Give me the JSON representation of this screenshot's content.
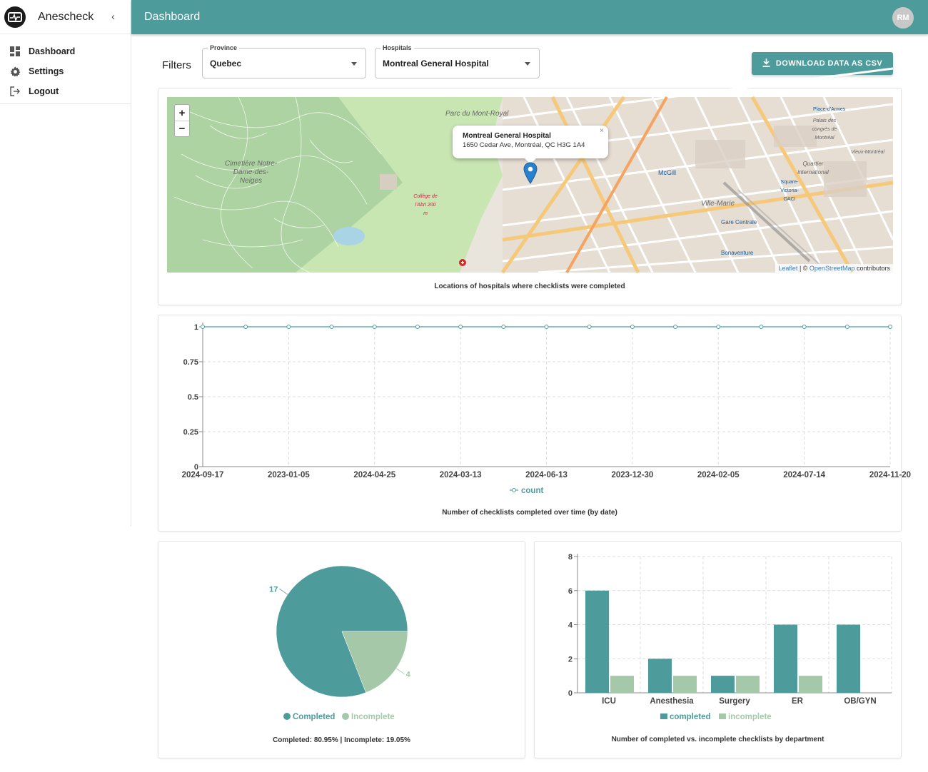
{
  "app": {
    "name": "Anescheck"
  },
  "topbar": {
    "title": "Dashboard",
    "avatar_initials": "RM"
  },
  "sidebar": {
    "items": [
      {
        "label": "Dashboard",
        "icon": "dashboard-icon"
      },
      {
        "label": "Settings",
        "icon": "gear-icon"
      },
      {
        "label": "Logout",
        "icon": "logout-icon"
      }
    ]
  },
  "filters": {
    "label": "Filters",
    "province": {
      "label": "Province",
      "value": "Quebec"
    },
    "hospital": {
      "label": "Hospitals",
      "value": "Montreal General Hospital"
    },
    "download_label": "DOWNLOAD DATA AS CSV"
  },
  "map": {
    "caption": "Locations of hospitals where checklists were completed",
    "popup": {
      "title": "Montreal General Hospital",
      "address": "1650 Cedar Ave, Montréal, QC H3G 1A4"
    },
    "labels": [
      "Parc du Mont-Royal",
      "Cimetière Notre-Dame-des-Neiges",
      "McGill",
      "Ville-Marie",
      "Gare Centrale",
      "Bonaventure",
      "Square-Victoria-OACI",
      "Quartier international",
      "Place-d'Armes",
      "Palais des congrès de Montréal",
      "Vieux-Montréal",
      "Collège de l'Abri 200 m"
    ],
    "attribution": {
      "leaflet": "Leaflet",
      "sep": " | © ",
      "osm": "OpenStreetMap",
      "rest": " contributors"
    },
    "zoom_in": "+",
    "zoom_out": "−",
    "colors": {
      "park": "#c8e6b2",
      "road_major": "#f6c97a",
      "road_minor": "#ffffff",
      "building": "#d9cfc4"
    }
  },
  "chart_data": [
    {
      "type": "line",
      "x": [
        "2024-09-17",
        "",
        "2023-01-05",
        "",
        "2024-04-25",
        "",
        "2024-03-13",
        "",
        "2024-06-13",
        "",
        "2023-12-30",
        "",
        "2024-02-05",
        "",
        "2024-07-14",
        "",
        "2024-11-20"
      ],
      "x_tick_labels": [
        "2024-09-17",
        "2023-01-05",
        "2024-04-25",
        "2024-03-13",
        "2024-06-13",
        "2023-12-30",
        "2024-02-05",
        "2024-07-14",
        "2024-11-20"
      ],
      "series": [
        {
          "name": "count",
          "values": [
            1,
            1,
            1,
            1,
            1,
            1,
            1,
            1,
            1,
            1,
            1,
            1,
            1,
            1,
            1,
            1,
            1
          ]
        }
      ],
      "y_ticks": [
        "0",
        "0.25",
        "0.5",
        "0.75",
        "1"
      ],
      "ylim": [
        0,
        1
      ],
      "grid": true,
      "legend": "bottom",
      "caption": "Number of checklists completed over time (by date)",
      "color": "#4e9b9b"
    },
    {
      "type": "pie",
      "labels": [
        "Completed",
        "Incomplete"
      ],
      "values": [
        17,
        4
      ],
      "colors": [
        "#4e9b9b",
        "#a5c9a8"
      ],
      "legend": "bottom",
      "caption": "Completed: 80.95% | Incomplete: 19.05%"
    },
    {
      "type": "bar",
      "categories": [
        "ICU",
        "Anesthesia",
        "Surgery",
        "ER",
        "OB/GYN"
      ],
      "series": [
        {
          "name": "completed",
          "values": [
            6,
            2,
            1,
            4,
            4
          ],
          "color": "#4e9b9b"
        },
        {
          "name": "incomplete",
          "values": [
            1,
            1,
            1,
            1,
            0
          ],
          "color": "#a5c9a8"
        }
      ],
      "y_ticks": [
        "0",
        "2",
        "4",
        "6",
        "8"
      ],
      "ylim": [
        0,
        8
      ],
      "grid": true,
      "legend": "bottom",
      "caption": "Number of completed vs. incomplete checklists by department"
    }
  ]
}
